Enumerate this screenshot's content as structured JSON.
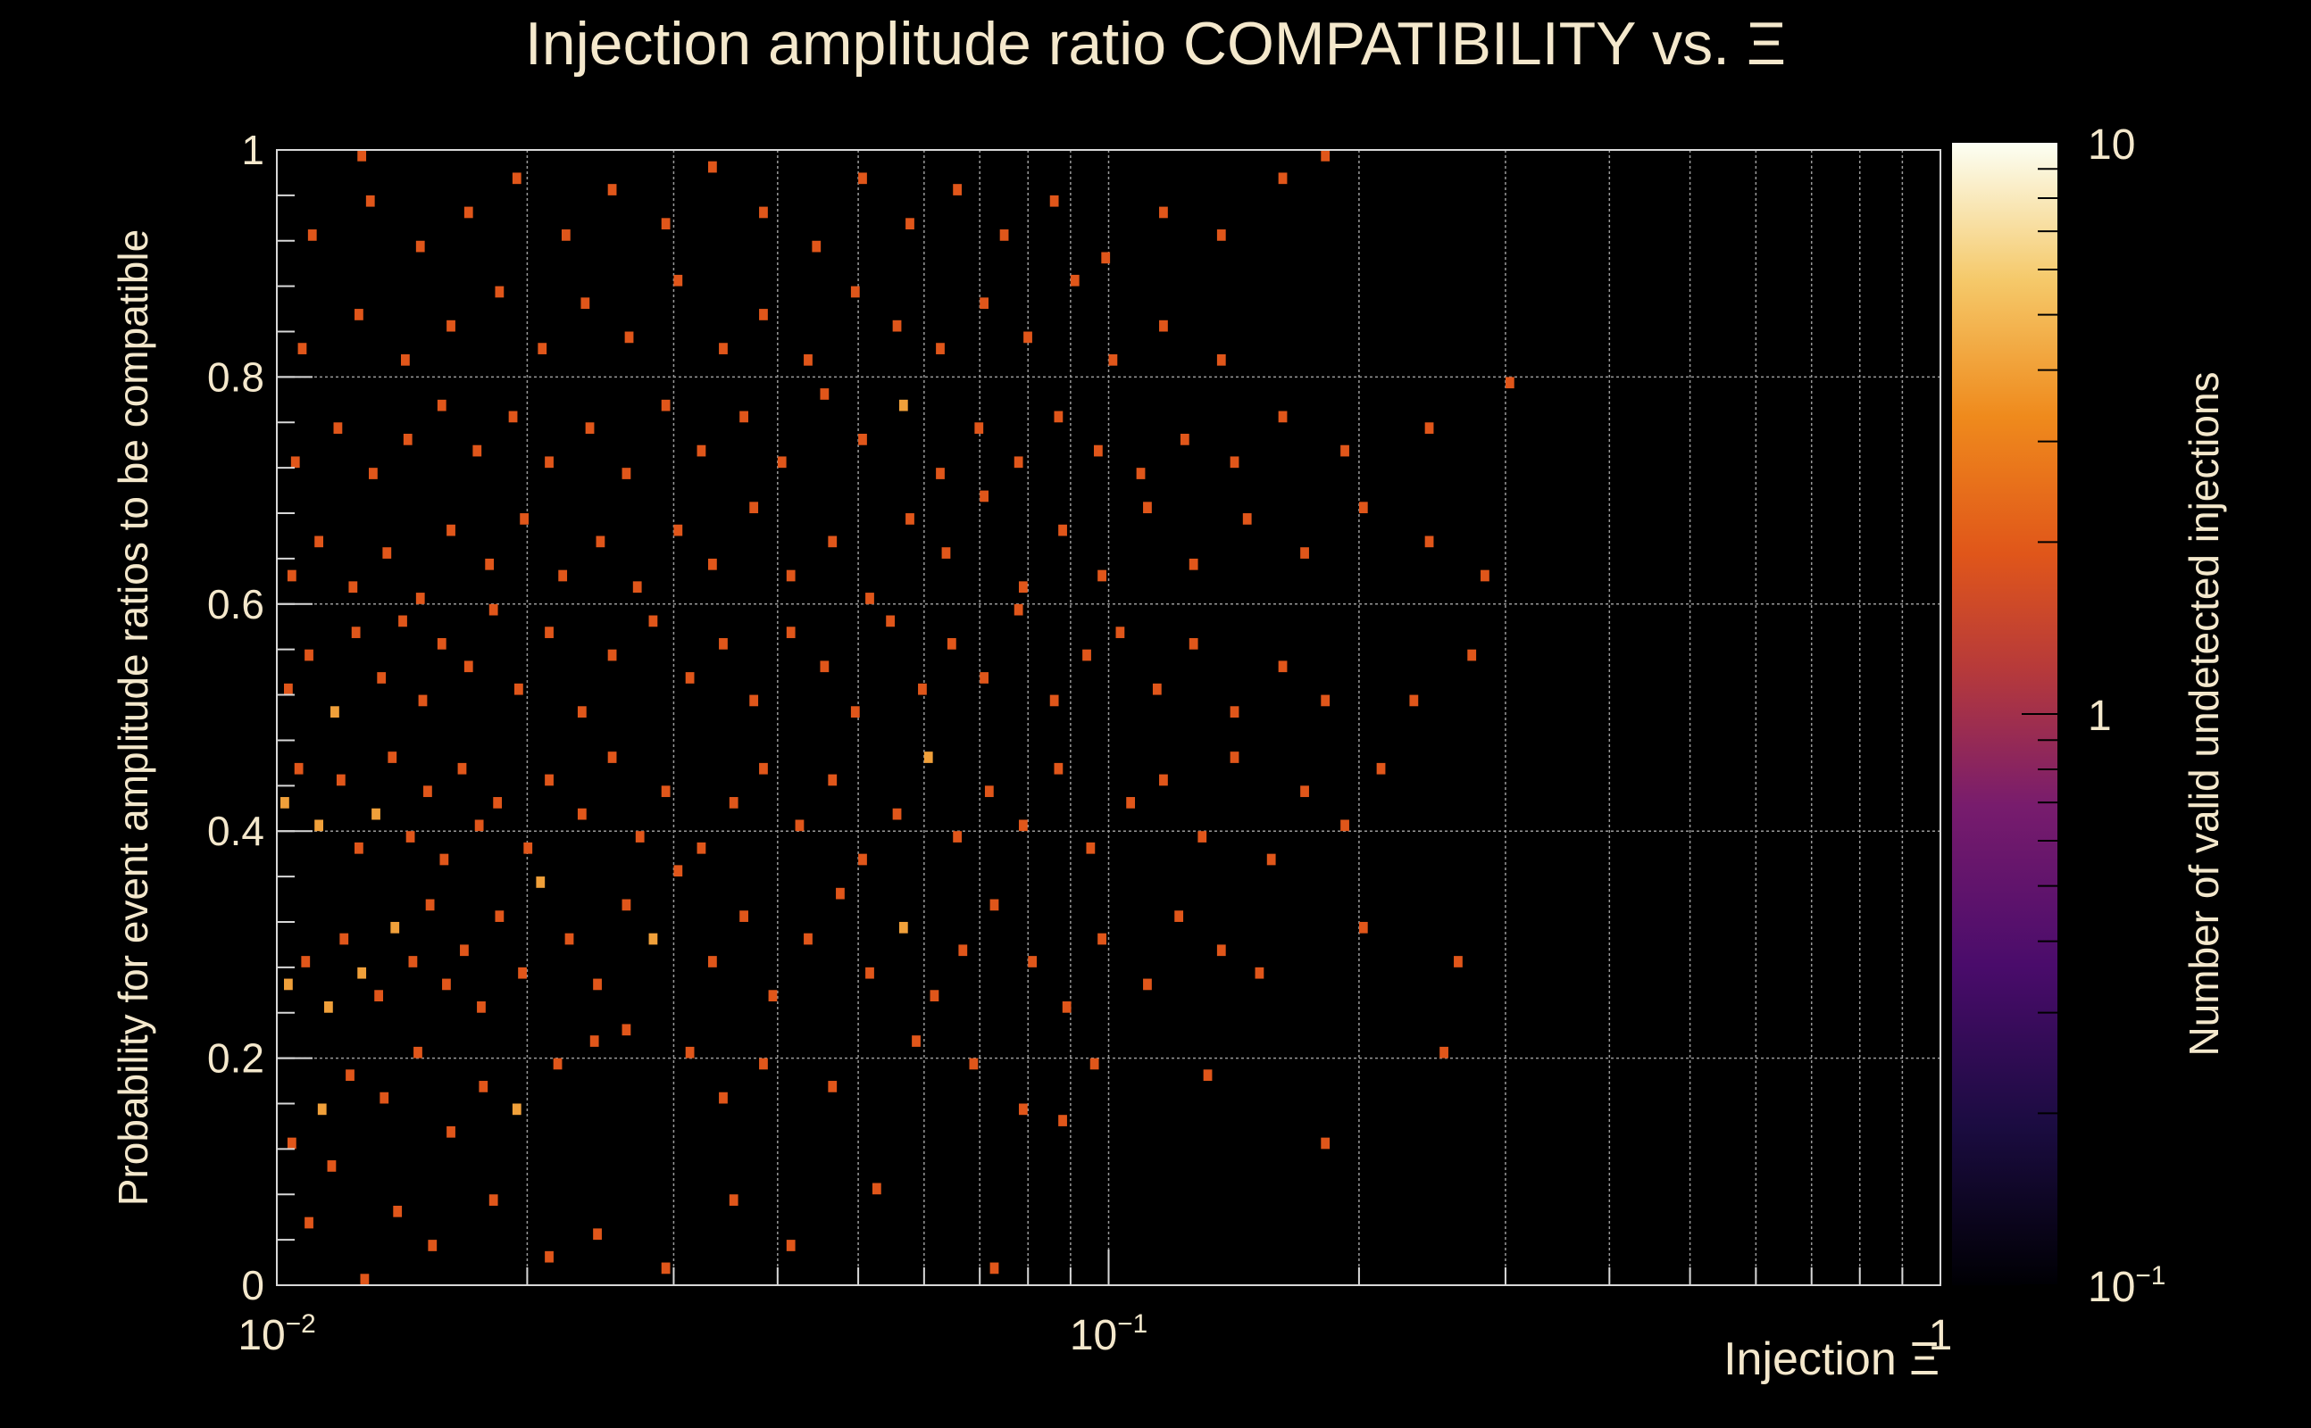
{
  "chart_data": {
    "type": "heatmap",
    "title": "Injection amplitude ratio COMPATIBILITY vs.  Ξ",
    "xlabel": "Injection Ξ",
    "ylabel": "Probability for event amplitude ratios to be compatible",
    "zlabel": "Number of valid undetected injections",
    "x_scale": "log",
    "xlim": [
      0.01,
      1
    ],
    "ylim": [
      0,
      1
    ],
    "z_scale": "log",
    "zlim": [
      0.1,
      10
    ],
    "x_ticks": [
      {
        "value": 0.01,
        "base": "10",
        "exp": "−2"
      },
      {
        "value": 0.1,
        "base": "10",
        "exp": "−1"
      },
      {
        "value": 1,
        "base": "1",
        "exp": ""
      }
    ],
    "y_ticks": [
      {
        "value": 0,
        "label": "0"
      },
      {
        "value": 0.2,
        "label": "0.2"
      },
      {
        "value": 0.4,
        "label": "0.4"
      },
      {
        "value": 0.6,
        "label": "0.6"
      },
      {
        "value": 0.8,
        "label": "0.8"
      },
      {
        "value": 1,
        "label": "1"
      }
    ],
    "z_ticks": [
      {
        "value": 0.1,
        "base": "10",
        "exp": "−1"
      },
      {
        "value": 1,
        "base": "1",
        "exp": ""
      },
      {
        "value": 10,
        "base": "10",
        "exp": ""
      }
    ],
    "grid": true,
    "colormap": "inferno",
    "background_color": "#000000",
    "text_color": "#f4e8cc",
    "grid_color": "#9a9a9a",
    "cell_color_1": "#e0561a",
    "cell_color_2": "#f0a03a",
    "cells": [
      [
        0.0108,
        0.05,
        1
      ],
      [
        0.0115,
        0.1,
        1
      ],
      [
        0.0126,
        0.0,
        1
      ],
      [
        0.0138,
        0.06,
        1
      ],
      [
        0.0152,
        0.03,
        1
      ],
      [
        0.018,
        0.07,
        1
      ],
      [
        0.021,
        0.02,
        1
      ],
      [
        0.024,
        0.04,
        1
      ],
      [
        0.029,
        0.01,
        1
      ],
      [
        0.035,
        0.07,
        1
      ],
      [
        0.041,
        0.03,
        1
      ],
      [
        0.052,
        0.08,
        1
      ],
      [
        0.072,
        0.01,
        1
      ],
      [
        0.087,
        0.14,
        1
      ],
      [
        0.0103,
        0.12,
        1
      ],
      [
        0.0112,
        0.15,
        2
      ],
      [
        0.0121,
        0.18,
        1
      ],
      [
        0.0133,
        0.16,
        1
      ],
      [
        0.0146,
        0.2,
        1
      ],
      [
        0.016,
        0.13,
        1
      ],
      [
        0.0175,
        0.17,
        1
      ],
      [
        0.0192,
        0.15,
        2
      ],
      [
        0.0215,
        0.19,
        1
      ],
      [
        0.0238,
        0.21,
        1
      ],
      [
        0.026,
        0.22,
        1
      ],
      [
        0.031,
        0.2,
        1
      ],
      [
        0.034,
        0.16,
        1
      ],
      [
        0.038,
        0.19,
        1
      ],
      [
        0.046,
        0.17,
        1
      ],
      [
        0.058,
        0.21,
        1
      ],
      [
        0.068,
        0.19,
        1
      ],
      [
        0.078,
        0.15,
        1
      ],
      [
        0.095,
        0.19,
        1
      ],
      [
        0.13,
        0.18,
        1
      ],
      [
        0.18,
        0.12,
        1
      ],
      [
        0.25,
        0.2,
        1
      ],
      [
        0.0102,
        0.26,
        2
      ],
      [
        0.0107,
        0.28,
        1
      ],
      [
        0.0114,
        0.24,
        2
      ],
      [
        0.0119,
        0.3,
        1
      ],
      [
        0.0125,
        0.27,
        2
      ],
      [
        0.0131,
        0.25,
        1
      ],
      [
        0.0137,
        0.31,
        2
      ],
      [
        0.0144,
        0.28,
        1
      ],
      [
        0.0151,
        0.33,
        1
      ],
      [
        0.0158,
        0.26,
        1
      ],
      [
        0.0166,
        0.29,
        1
      ],
      [
        0.0174,
        0.24,
        1
      ],
      [
        0.0183,
        0.32,
        1
      ],
      [
        0.0195,
        0.27,
        1
      ],
      [
        0.0205,
        0.35,
        2
      ],
      [
        0.0222,
        0.3,
        1
      ],
      [
        0.024,
        0.26,
        1
      ],
      [
        0.026,
        0.33,
        1
      ],
      [
        0.028,
        0.3,
        2
      ],
      [
        0.03,
        0.36,
        1
      ],
      [
        0.033,
        0.28,
        1
      ],
      [
        0.036,
        0.32,
        1
      ],
      [
        0.039,
        0.25,
        1
      ],
      [
        0.043,
        0.3,
        1
      ],
      [
        0.047,
        0.34,
        1
      ],
      [
        0.051,
        0.27,
        1
      ],
      [
        0.056,
        0.31,
        2
      ],
      [
        0.061,
        0.25,
        1
      ],
      [
        0.066,
        0.29,
        1
      ],
      [
        0.072,
        0.33,
        1
      ],
      [
        0.08,
        0.28,
        1
      ],
      [
        0.088,
        0.24,
        1
      ],
      [
        0.097,
        0.3,
        1
      ],
      [
        0.11,
        0.26,
        1
      ],
      [
        0.12,
        0.32,
        1
      ],
      [
        0.135,
        0.29,
        1
      ],
      [
        0.15,
        0.27,
        1
      ],
      [
        0.2,
        0.31,
        1
      ],
      [
        0.26,
        0.28,
        1
      ],
      [
        0.0101,
        0.42,
        2
      ],
      [
        0.0105,
        0.45,
        1
      ],
      [
        0.0111,
        0.4,
        2
      ],
      [
        0.0118,
        0.44,
        1
      ],
      [
        0.0124,
        0.38,
        1
      ],
      [
        0.013,
        0.41,
        2
      ],
      [
        0.0136,
        0.46,
        1
      ],
      [
        0.0143,
        0.39,
        1
      ],
      [
        0.015,
        0.43,
        1
      ],
      [
        0.0157,
        0.37,
        1
      ],
      [
        0.0165,
        0.45,
        1
      ],
      [
        0.0173,
        0.4,
        1
      ],
      [
        0.0182,
        0.42,
        1
      ],
      [
        0.0198,
        0.38,
        1
      ],
      [
        0.021,
        0.44,
        1
      ],
      [
        0.023,
        0.41,
        1
      ],
      [
        0.025,
        0.46,
        1
      ],
      [
        0.027,
        0.39,
        1
      ],
      [
        0.029,
        0.43,
        1
      ],
      [
        0.032,
        0.38,
        1
      ],
      [
        0.035,
        0.42,
        1
      ],
      [
        0.038,
        0.45,
        1
      ],
      [
        0.042,
        0.4,
        1
      ],
      [
        0.046,
        0.44,
        1
      ],
      [
        0.05,
        0.37,
        1
      ],
      [
        0.055,
        0.41,
        1
      ],
      [
        0.06,
        0.46,
        2
      ],
      [
        0.065,
        0.39,
        1
      ],
      [
        0.071,
        0.43,
        1
      ],
      [
        0.078,
        0.4,
        1
      ],
      [
        0.086,
        0.45,
        1
      ],
      [
        0.094,
        0.38,
        1
      ],
      [
        0.105,
        0.42,
        1
      ],
      [
        0.115,
        0.44,
        1
      ],
      [
        0.128,
        0.39,
        1
      ],
      [
        0.14,
        0.46,
        1
      ],
      [
        0.155,
        0.37,
        1
      ],
      [
        0.17,
        0.43,
        1
      ],
      [
        0.19,
        0.4,
        1
      ],
      [
        0.21,
        0.45,
        1
      ],
      [
        0.0102,
        0.52,
        1
      ],
      [
        0.0108,
        0.55,
        1
      ],
      [
        0.0116,
        0.5,
        2
      ],
      [
        0.0123,
        0.57,
        1
      ],
      [
        0.0132,
        0.53,
        1
      ],
      [
        0.014,
        0.58,
        1
      ],
      [
        0.0148,
        0.51,
        1
      ],
      [
        0.0156,
        0.56,
        1
      ],
      [
        0.0168,
        0.54,
        1
      ],
      [
        0.018,
        0.59,
        1
      ],
      [
        0.0193,
        0.52,
        1
      ],
      [
        0.021,
        0.57,
        1
      ],
      [
        0.023,
        0.5,
        1
      ],
      [
        0.025,
        0.55,
        1
      ],
      [
        0.028,
        0.58,
        1
      ],
      [
        0.031,
        0.53,
        1
      ],
      [
        0.034,
        0.56,
        1
      ],
      [
        0.037,
        0.51,
        1
      ],
      [
        0.041,
        0.57,
        1
      ],
      [
        0.045,
        0.54,
        1
      ],
      [
        0.049,
        0.5,
        1
      ],
      [
        0.054,
        0.58,
        1
      ],
      [
        0.059,
        0.52,
        1
      ],
      [
        0.064,
        0.56,
        1
      ],
      [
        0.07,
        0.53,
        1
      ],
      [
        0.077,
        0.59,
        1
      ],
      [
        0.085,
        0.51,
        1
      ],
      [
        0.093,
        0.55,
        1
      ],
      [
        0.102,
        0.57,
        1
      ],
      [
        0.113,
        0.52,
        1
      ],
      [
        0.125,
        0.56,
        1
      ],
      [
        0.14,
        0.5,
        1
      ],
      [
        0.16,
        0.54,
        1
      ],
      [
        0.18,
        0.51,
        1
      ],
      [
        0.23,
        0.51,
        1
      ],
      [
        0.27,
        0.55,
        1
      ],
      [
        0.0103,
        0.62,
        1
      ],
      [
        0.0111,
        0.65,
        1
      ],
      [
        0.0122,
        0.61,
        1
      ],
      [
        0.0134,
        0.64,
        1
      ],
      [
        0.0147,
        0.6,
        1
      ],
      [
        0.016,
        0.66,
        1
      ],
      [
        0.0178,
        0.63,
        1
      ],
      [
        0.0196,
        0.67,
        1
      ],
      [
        0.0218,
        0.62,
        1
      ],
      [
        0.0242,
        0.65,
        1
      ],
      [
        0.0268,
        0.61,
        1
      ],
      [
        0.03,
        0.66,
        1
      ],
      [
        0.033,
        0.63,
        1
      ],
      [
        0.037,
        0.68,
        1
      ],
      [
        0.041,
        0.62,
        1
      ],
      [
        0.046,
        0.65,
        1
      ],
      [
        0.051,
        0.6,
        1
      ],
      [
        0.057,
        0.67,
        1
      ],
      [
        0.063,
        0.64,
        1
      ],
      [
        0.07,
        0.69,
        1
      ],
      [
        0.078,
        0.61,
        1
      ],
      [
        0.087,
        0.66,
        1
      ],
      [
        0.097,
        0.62,
        1
      ],
      [
        0.11,
        0.68,
        1
      ],
      [
        0.125,
        0.63,
        1
      ],
      [
        0.145,
        0.67,
        1
      ],
      [
        0.17,
        0.64,
        1
      ],
      [
        0.2,
        0.68,
        1
      ],
      [
        0.24,
        0.65,
        1
      ],
      [
        0.28,
        0.62,
        1
      ],
      [
        0.0104,
        0.72,
        1
      ],
      [
        0.0117,
        0.75,
        1
      ],
      [
        0.0129,
        0.71,
        1
      ],
      [
        0.0142,
        0.74,
        1
      ],
      [
        0.0156,
        0.77,
        1
      ],
      [
        0.0172,
        0.73,
        1
      ],
      [
        0.019,
        0.76,
        1
      ],
      [
        0.021,
        0.72,
        1
      ],
      [
        0.0235,
        0.75,
        1
      ],
      [
        0.026,
        0.71,
        1
      ],
      [
        0.029,
        0.77,
        1
      ],
      [
        0.032,
        0.73,
        1
      ],
      [
        0.036,
        0.76,
        1
      ],
      [
        0.04,
        0.72,
        1
      ],
      [
        0.045,
        0.78,
        1
      ],
      [
        0.05,
        0.74,
        1
      ],
      [
        0.056,
        0.77,
        2
      ],
      [
        0.062,
        0.71,
        1
      ],
      [
        0.069,
        0.75,
        1
      ],
      [
        0.077,
        0.72,
        1
      ],
      [
        0.086,
        0.76,
        1
      ],
      [
        0.096,
        0.73,
        1
      ],
      [
        0.108,
        0.71,
        1
      ],
      [
        0.122,
        0.74,
        1
      ],
      [
        0.14,
        0.72,
        1
      ],
      [
        0.16,
        0.76,
        1
      ],
      [
        0.19,
        0.73,
        1
      ],
      [
        0.24,
        0.75,
        1
      ],
      [
        0.0106,
        0.82,
        1
      ],
      [
        0.0124,
        0.85,
        1
      ],
      [
        0.0141,
        0.81,
        1
      ],
      [
        0.016,
        0.84,
        1
      ],
      [
        0.0183,
        0.87,
        1
      ],
      [
        0.0206,
        0.82,
        1
      ],
      [
        0.0232,
        0.86,
        1
      ],
      [
        0.0262,
        0.83,
        1
      ],
      [
        0.03,
        0.88,
        1
      ],
      [
        0.034,
        0.82,
        1
      ],
      [
        0.038,
        0.85,
        1
      ],
      [
        0.043,
        0.81,
        1
      ],
      [
        0.049,
        0.87,
        1
      ],
      [
        0.055,
        0.84,
        1
      ],
      [
        0.062,
        0.82,
        1
      ],
      [
        0.07,
        0.86,
        1
      ],
      [
        0.079,
        0.83,
        1
      ],
      [
        0.09,
        0.88,
        1
      ],
      [
        0.1,
        0.81,
        1
      ],
      [
        0.115,
        0.84,
        1
      ],
      [
        0.135,
        0.81,
        1
      ],
      [
        0.3,
        0.79,
        1
      ],
      [
        0.0109,
        0.92,
        1
      ],
      [
        0.0128,
        0.95,
        1
      ],
      [
        0.0147,
        0.91,
        1
      ],
      [
        0.0168,
        0.94,
        1
      ],
      [
        0.0192,
        0.97,
        1
      ],
      [
        0.022,
        0.92,
        1
      ],
      [
        0.025,
        0.96,
        1
      ],
      [
        0.029,
        0.93,
        1
      ],
      [
        0.033,
        0.98,
        1
      ],
      [
        0.038,
        0.94,
        1
      ],
      [
        0.044,
        0.91,
        1
      ],
      [
        0.05,
        0.97,
        1
      ],
      [
        0.057,
        0.93,
        1
      ],
      [
        0.065,
        0.96,
        1
      ],
      [
        0.074,
        0.92,
        1
      ],
      [
        0.085,
        0.95,
        1
      ],
      [
        0.098,
        0.9,
        1
      ],
      [
        0.115,
        0.94,
        1
      ],
      [
        0.135,
        0.92,
        1
      ],
      [
        0.16,
        0.97,
        1
      ],
      [
        0.18,
        0.99,
        1
      ],
      [
        0.0125,
        0.99,
        1
      ]
    ]
  }
}
